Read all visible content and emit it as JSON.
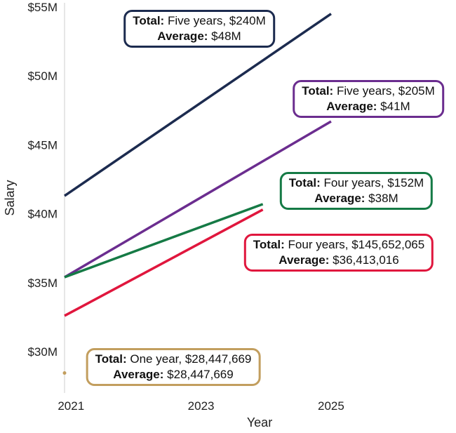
{
  "chart_data": {
    "type": "line",
    "xlabel": "Year",
    "ylabel": "Salary",
    "xlim": [
      2020.9,
      2026.9
    ],
    "ylim": [
      27,
      55.3
    ],
    "x_ticks": [
      2021,
      2023,
      2025
    ],
    "x_tick_labels": [
      "2021",
      "2023",
      "2025"
    ],
    "y_ticks": [
      30,
      35,
      40,
      45,
      50,
      55
    ],
    "y_tick_labels": [
      "$30M",
      "$35M",
      "$40M",
      "$45M",
      "$50M",
      "$55M"
    ],
    "series": [
      {
        "color": "#1c2b4f",
        "x": [
          2020.9,
          2025
        ],
        "y": [
          41.3,
          54.5
        ]
      },
      {
        "color": "#6b2d8f",
        "x": [
          2020.9,
          2025
        ],
        "y": [
          35.4,
          46.7
        ]
      },
      {
        "color": "#157a45",
        "x": [
          2020.9,
          2023.95
        ],
        "y": [
          35.4,
          40.7
        ]
      },
      {
        "color": "#e0163d",
        "x": [
          2020.9,
          2023.95
        ],
        "y": [
          32.6,
          40.3
        ]
      },
      {
        "color": "#c29e5e",
        "x": [
          2020.9
        ],
        "y": [
          28.45
        ]
      }
    ],
    "annotations": [
      {
        "total_label": "Total:",
        "total_value": " Five years, $240M",
        "avg_label": "Average:",
        "avg_value": " $48M",
        "color": "#1c2b4f"
      },
      {
        "total_label": "Total:",
        "total_value": " Five years, $205M",
        "avg_label": "Average:",
        "avg_value": " $41M",
        "color": "#6b2d8f"
      },
      {
        "total_label": "Total:",
        "total_value": " Four years, $152M",
        "avg_label": "Average:",
        "avg_value": " $38M",
        "color": "#157a45"
      },
      {
        "total_label": "Total:",
        "total_value": " Four years, $145,652,065",
        "avg_label": "Average:",
        "avg_value": " $36,413,016",
        "color": "#e0163d"
      },
      {
        "total_label": "Total:",
        "total_value": " One year, $28,447,669",
        "avg_label": "Average:",
        "avg_value": " $28,447,669",
        "color": "#c29e5e"
      }
    ]
  }
}
